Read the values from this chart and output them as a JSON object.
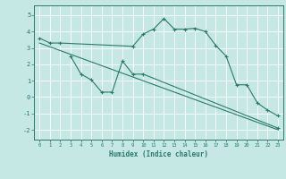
{
  "xlabel": "Humidex (Indice chaleur)",
  "bg_color": "#c5e8e5",
  "grid_color": "#ffffff",
  "line_color": "#2a7a6a",
  "xlim": [
    -0.5,
    23.5
  ],
  "ylim": [
    -2.6,
    5.6
  ],
  "yticks": [
    -2,
    -1,
    0,
    1,
    2,
    3,
    4,
    5
  ],
  "xticks": [
    0,
    1,
    2,
    3,
    4,
    5,
    6,
    7,
    8,
    9,
    10,
    11,
    12,
    13,
    14,
    15,
    16,
    17,
    18,
    19,
    20,
    21,
    22,
    23
  ],
  "line1_x": [
    0,
    1,
    2,
    9,
    10,
    11,
    12,
    13,
    14,
    15,
    16,
    17,
    18,
    19,
    20,
    21,
    22,
    23
  ],
  "line1_y": [
    3.6,
    3.3,
    3.3,
    3.1,
    3.85,
    4.15,
    4.8,
    4.15,
    4.15,
    4.2,
    4.0,
    3.15,
    2.5,
    0.75,
    0.75,
    -0.35,
    -0.8,
    -1.15
  ],
  "line2_x": [
    0,
    23
  ],
  "line2_y": [
    3.3,
    -2.0
  ],
  "line3_x": [
    3,
    4,
    5,
    6,
    7,
    8,
    9,
    10,
    23
  ],
  "line3_y": [
    2.5,
    1.4,
    1.05,
    0.3,
    0.3,
    2.2,
    1.4,
    1.4,
    -1.9
  ]
}
